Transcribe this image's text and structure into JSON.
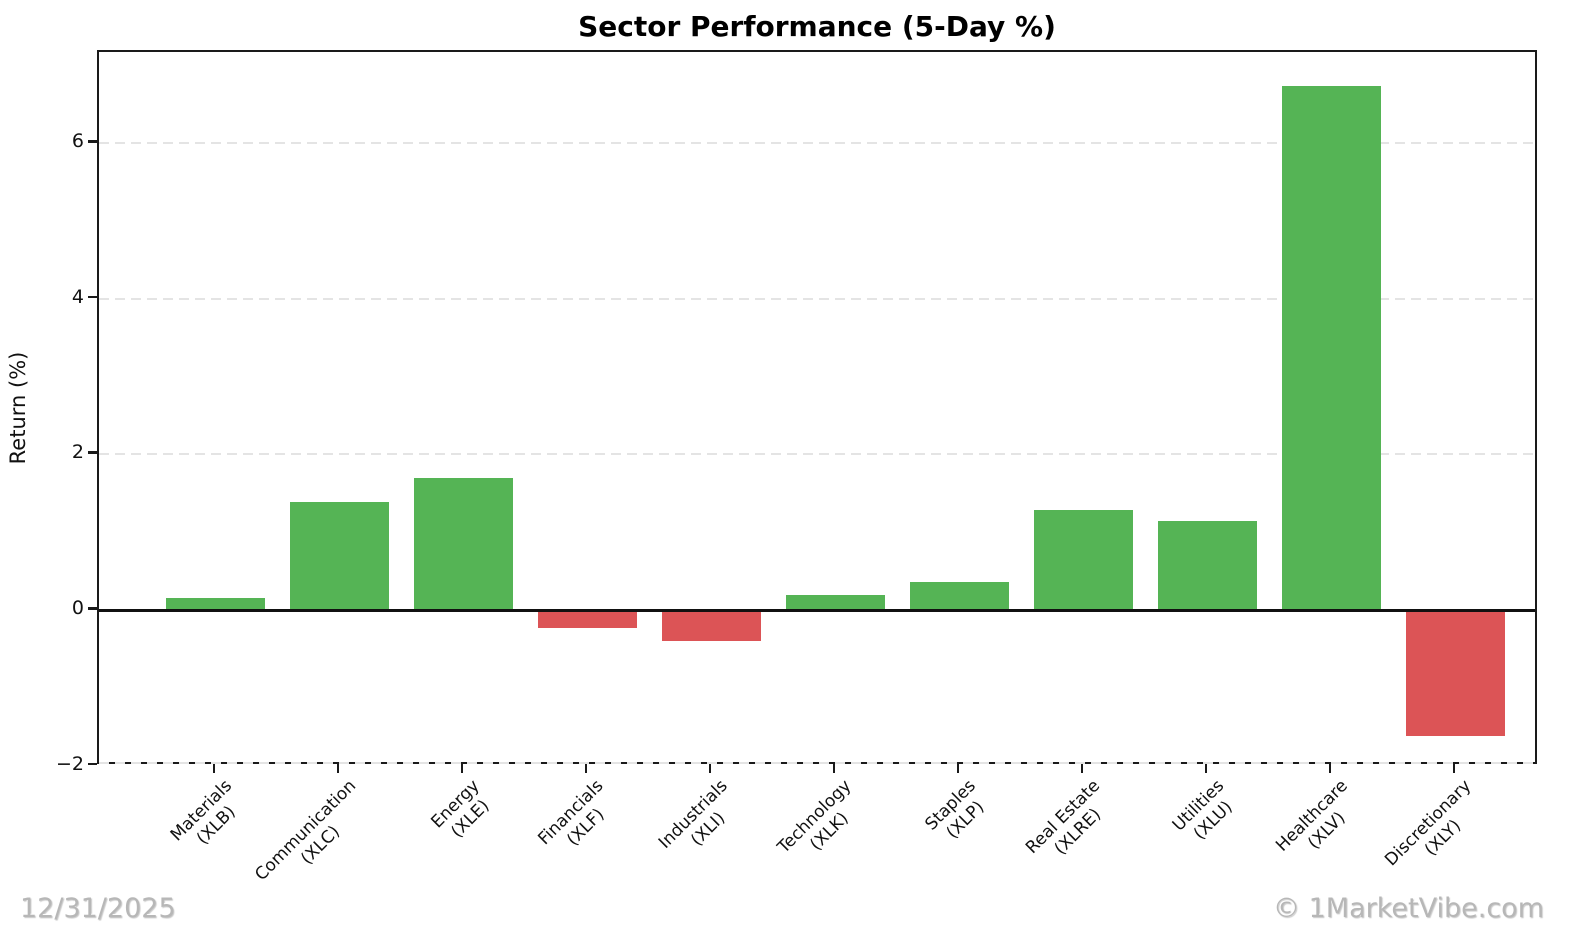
{
  "chart_data": {
    "type": "bar",
    "title": "Sector Performance (5-Day %)",
    "ylabel": "Return (%)",
    "xlabel": "",
    "categories": [
      "Materials (XLB)",
      "Communication (XLC)",
      "Energy (XLE)",
      "Financials (XLF)",
      "Industrials (XLI)",
      "Technology (XLK)",
      "Staples (XLP)",
      "Real Estate (XLRE)",
      "Utilities (XLU)",
      "Healthcare (XLV)",
      "Discretionary (XLY)"
    ],
    "tick_labels": [
      [
        "Materials",
        "(XLB)"
      ],
      [
        "Communication",
        "(XLC)"
      ],
      [
        "Energy",
        "(XLE)"
      ],
      [
        "Financials",
        "(XLF)"
      ],
      [
        "Industrials",
        "(XLI)"
      ],
      [
        "Technology",
        "(XLK)"
      ],
      [
        "Staples",
        "(XLP)"
      ],
      [
        "Real Estate",
        "(XLRE)"
      ],
      [
        "Utilities",
        "(XLU)"
      ],
      [
        "Healthcare",
        "(XLV)"
      ],
      [
        "Discretionary",
        "(XLY)"
      ]
    ],
    "values": [
      0.15,
      1.39,
      1.7,
      -0.23,
      -0.4,
      0.19,
      0.36,
      1.29,
      1.14,
      6.74,
      -1.62
    ],
    "yticks": [
      -2,
      0,
      2,
      4,
      6
    ],
    "ylim": [
      -2.005,
      7.172
    ],
    "grid": "horizontal-dashed",
    "legend": "none",
    "colors": {
      "positive": "#55b455",
      "negative": "#dc5456",
      "grid": "#e4e4e4",
      "axis": "#1a1a1a",
      "watermark": "#b7b7b7"
    }
  },
  "footer": {
    "date": "12/31/2025",
    "watermark": "© 1MarketVibe.com"
  }
}
